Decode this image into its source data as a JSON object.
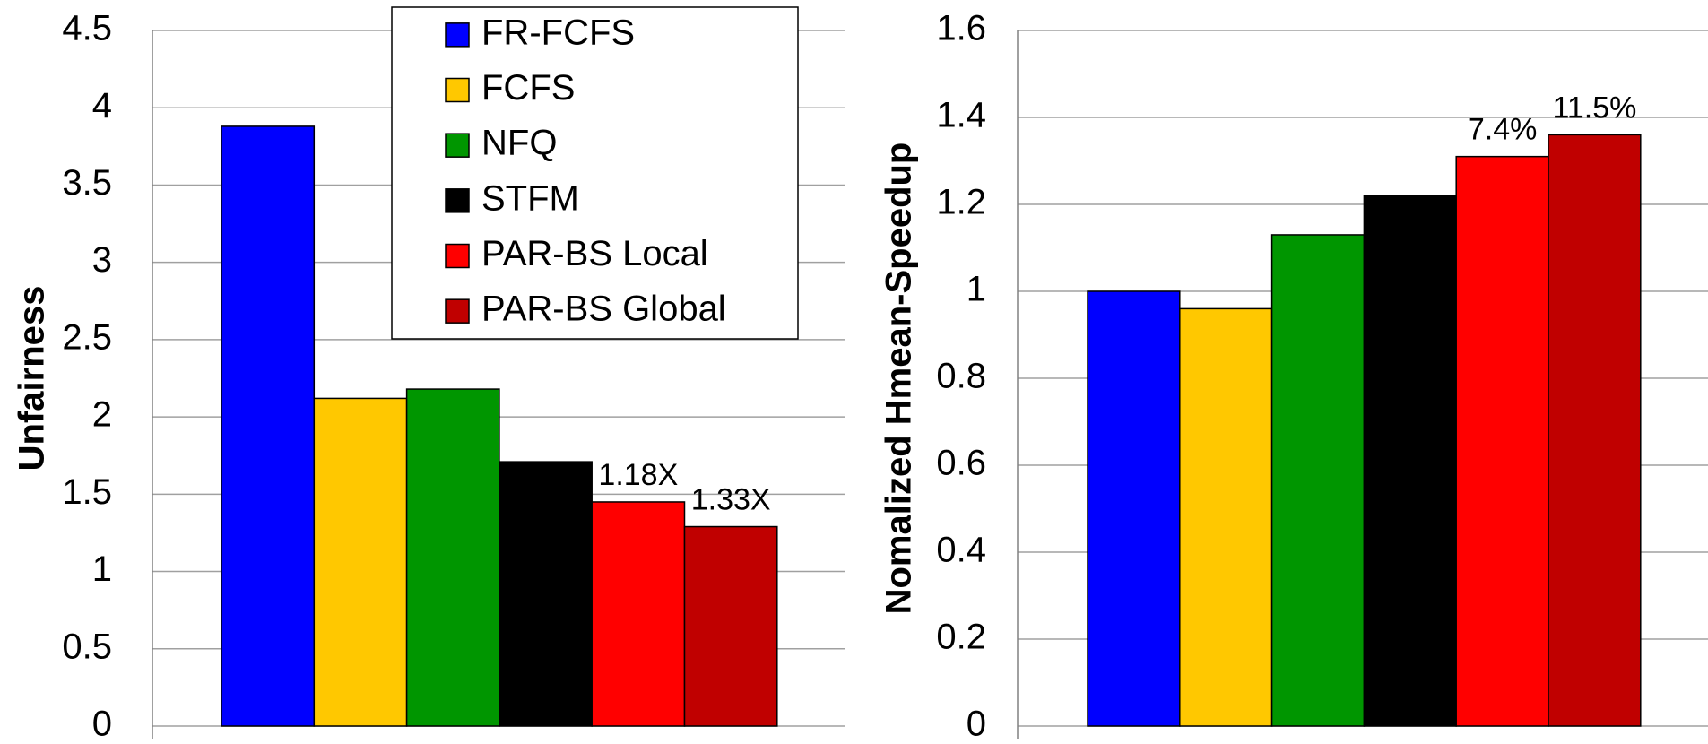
{
  "chart_data": [
    {
      "type": "bar",
      "ylabel": "Unfairness",
      "ylim": [
        0,
        4.5
      ],
      "yticks": [
        0,
        0.5,
        1,
        1.5,
        2,
        2.5,
        3,
        3.5,
        4,
        4.5
      ],
      "grid": true,
      "legend": "top",
      "series": [
        {
          "name": "FR-FCFS",
          "color": "#0000ff",
          "values": [
            3.88
          ]
        },
        {
          "name": "FCFS",
          "color": "#ffc800",
          "values": [
            2.12
          ]
        },
        {
          "name": "NFQ",
          "color": "#009600",
          "values": [
            2.18
          ]
        },
        {
          "name": "STFM",
          "color": "#000000",
          "values": [
            1.71
          ]
        },
        {
          "name": "PAR-BS Local",
          "color": "#ff0000",
          "values": [
            1.45
          ],
          "annotation": "1.18X"
        },
        {
          "name": "PAR-BS Global",
          "color": "#c00000",
          "values": [
            1.29
          ],
          "annotation": "1.33X"
        }
      ]
    },
    {
      "type": "bar",
      "ylabel": "Nomalized Hmean-Speedup",
      "ylim": [
        0,
        1.6
      ],
      "yticks": [
        0,
        0.2,
        0.4,
        0.6,
        0.8,
        1,
        1.2,
        1.4,
        1.6
      ],
      "grid": true,
      "series": [
        {
          "color": "#0000ff",
          "values": [
            1.0
          ]
        },
        {
          "color": "#ffc800",
          "values": [
            0.96
          ]
        },
        {
          "color": "#009600",
          "values": [
            1.13
          ]
        },
        {
          "color": "#000000",
          "values": [
            1.22
          ]
        },
        {
          "color": "#ff0000",
          "values": [
            1.31
          ],
          "annotation": "7.4%"
        },
        {
          "color": "#c00000",
          "values": [
            1.36
          ],
          "annotation": "11.5%"
        }
      ]
    }
  ]
}
